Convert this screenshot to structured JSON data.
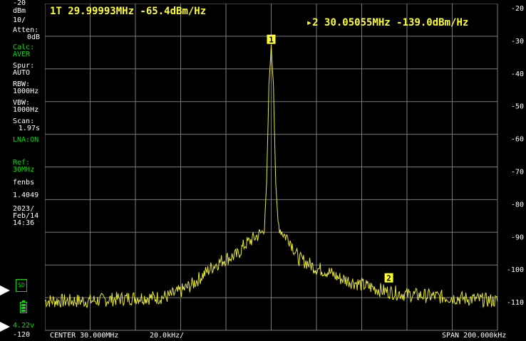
{
  "header": {
    "marker1": "1T 29.99993MHz -65.4dBm/Hz",
    "marker2": "2 30.05055MHz -139.0dBm/Hz"
  },
  "sidebar": {
    "ref_level": "-20",
    "unit": "dBm",
    "scale": "10/",
    "atten_label": "Atten:",
    "atten_value": "0dB",
    "calc_label": "Calc:",
    "calc_value": "AVER",
    "spur_label": "Spur:",
    "spur_value": "AUTO",
    "rbw_label": "RBW:",
    "rbw_value": "1000Hz",
    "vbw_label": "VBW:",
    "vbw_value": "1000Hz",
    "scan_label": "Scan:",
    "scan_value": "1.97s",
    "lna": "LNA:ON",
    "ref_label": "Ref:",
    "ref_value": "30MHz",
    "user_label": "fenbs",
    "version": "1.4049",
    "date_year": "2023/",
    "date_day": "Feb/14",
    "time": "14:36",
    "sd_label": "SD",
    "battery_voltage": "4.22v",
    "bottom_level": "-120"
  },
  "footer": {
    "center": "CENTER 30.000MHz",
    "per_div": "20.0kHz/",
    "span": "SPAN 200.000kHz"
  },
  "y_axis_labels": [
    "-20",
    "-30",
    "-40",
    "-50",
    "-60",
    "-70",
    "-80",
    "-90",
    "-100",
    "-110"
  ],
  "markers": [
    {
      "id": "1",
      "label": "1"
    },
    {
      "id": "2",
      "label": "2"
    }
  ],
  "colors": {
    "trace": "#e8e830",
    "marker": "#ffff30",
    "grid": "#7a7a7a",
    "sidebar_green": "#00e000"
  },
  "chart_data": {
    "type": "line",
    "x_unit": "kHz offset from center",
    "xlim": [
      -100,
      100
    ],
    "ylim": [
      -120,
      -20
    ],
    "x": [
      -100,
      -90,
      -80,
      -70,
      -60,
      -50,
      -45,
      -40,
      -35,
      -30,
      -25,
      -20,
      -15,
      -12,
      -10,
      -8,
      -6,
      -4,
      -3,
      -2,
      -1,
      0,
      1,
      2,
      3,
      4,
      6,
      8,
      10,
      12,
      15,
      20,
      25,
      30,
      35,
      40,
      45,
      50,
      60,
      70,
      80,
      90,
      100
    ],
    "y": [
      -111,
      -111,
      -111,
      -110.5,
      -110,
      -110,
      -109.5,
      -108,
      -106,
      -103,
      -100,
      -98,
      -97,
      -94,
      -93,
      -92,
      -91,
      -90,
      -88,
      -75,
      -45,
      -33,
      -45,
      -75,
      -87,
      -89,
      -91,
      -92,
      -95,
      -98,
      -99,
      -101,
      -102,
      -104,
      -105,
      -106,
      -107,
      -108,
      -109,
      -109.5,
      -110,
      -110.5,
      -111
    ]
  }
}
